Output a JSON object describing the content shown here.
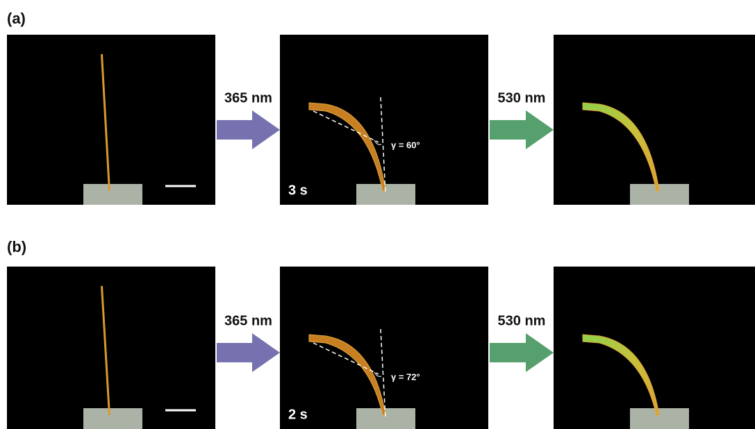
{
  "panels": [
    {
      "label": "(a)",
      "arrow_uv": "365 nm",
      "arrow_green": "530 nm",
      "time": "3 s",
      "angle": "γ = 60°"
    },
    {
      "label": "(b)",
      "arrow_uv": "365 nm",
      "arrow_green": "530 nm",
      "time": "2 s",
      "angle": "γ = 72°"
    }
  ]
}
